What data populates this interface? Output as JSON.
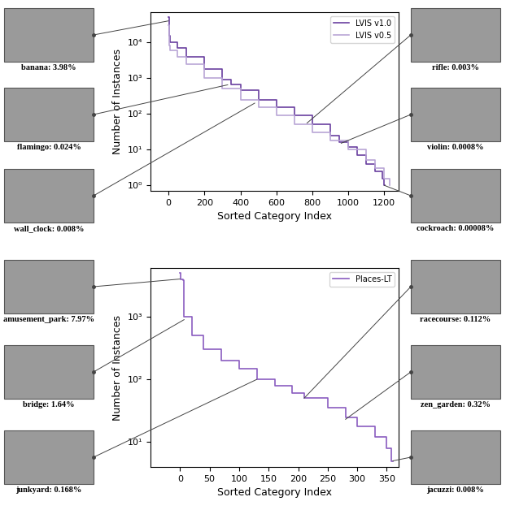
{
  "chart_data": [
    {
      "type": "line",
      "xlabel": "Sorted Category Index",
      "ylabel": "Number of Instances",
      "log": "y",
      "grid": false,
      "legend": "upper right",
      "xlim": [
        -100,
        1280
      ],
      "ylim": [
        0.7,
        70000
      ],
      "xticks": [
        0,
        200,
        400,
        600,
        800,
        1000,
        1200
      ],
      "yticks": [
        {
          "value": 1,
          "label": "10⁰"
        },
        {
          "value": 10,
          "label": "10¹"
        },
        {
          "value": 100,
          "label": "10²"
        },
        {
          "value": 1000,
          "label": "10³"
        },
        {
          "value": 10000,
          "label": "10⁴"
        }
      ],
      "series": [
        {
          "name": "LVIS v1.0",
          "color": "#6a3fa0",
          "x": [
            0,
            3,
            10,
            50,
            100,
            200,
            300,
            350,
            400,
            500,
            600,
            700,
            800,
            900,
            950,
            1000,
            1050,
            1100,
            1150,
            1190,
            1200,
            1203
          ],
          "values": [
            50000,
            15000,
            10000,
            7000,
            4000,
            1800,
            900,
            650,
            450,
            250,
            150,
            90,
            50,
            25,
            16,
            12,
            7,
            4,
            2.5,
            1.5,
            1,
            1
          ]
        },
        {
          "name": "LVIS v0.5",
          "color": "#b9a5d6",
          "x": [
            0,
            3,
            10,
            50,
            100,
            200,
            300,
            400,
            500,
            600,
            700,
            800,
            900,
            1000,
            1100,
            1150,
            1200,
            1230
          ],
          "values": [
            30000,
            8000,
            6000,
            4000,
            2500,
            1000,
            500,
            250,
            150,
            90,
            50,
            30,
            18,
            10,
            5,
            3,
            1.5,
            1
          ]
        }
      ],
      "annotations": [
        {
          "text": "banana: 3.98%",
          "x": 0,
          "y": 40000
        },
        {
          "text": "flamingo: 0.024%",
          "x": 330,
          "y": 650
        },
        {
          "text": "wall_clock: 0.008%",
          "x": 480,
          "y": 200
        },
        {
          "text": "rifle: 0.003%",
          "x": 770,
          "y": 55
        },
        {
          "text": "violin: 0.0008%",
          "x": 960,
          "y": 15
        },
        {
          "text": "cockroach: 0.00008%",
          "x": 1200,
          "y": 1
        }
      ]
    },
    {
      "type": "line",
      "xlabel": "Sorted Category Index",
      "ylabel": "Number of Instances",
      "log": "y",
      "grid": false,
      "legend": "upper right",
      "xlim": [
        -50,
        370
      ],
      "ylim": [
        4,
        6000
      ],
      "xticks": [
        0,
        50,
        100,
        150,
        200,
        250,
        300,
        350
      ],
      "yticks": [
        {
          "value": 10,
          "label": "10¹"
        },
        {
          "value": 100,
          "label": "10²"
        },
        {
          "value": 1000,
          "label": "10³"
        }
      ],
      "series": [
        {
          "name": "Places-LT",
          "color": "#8a5cc0",
          "x": [
            0,
            1,
            5,
            7,
            20,
            40,
            70,
            100,
            130,
            160,
            190,
            210,
            250,
            280,
            300,
            330,
            350,
            358,
            360
          ],
          "values": [
            4980,
            4000,
            3800,
            1000,
            500,
            300,
            200,
            150,
            100,
            80,
            60,
            50,
            35,
            25,
            18,
            12,
            8,
            5,
            5
          ]
        }
      ],
      "annotations": [
        {
          "text": "amusement_park: 7.97%",
          "x": 0,
          "y": 4000
        },
        {
          "text": "bridge: 1.64%",
          "x": 7,
          "y": 900
        },
        {
          "text": "junkyard: 0.168%",
          "x": 130,
          "y": 100
        },
        {
          "text": "racecourse: 0.112%",
          "x": 210,
          "y": 50
        },
        {
          "text": "zen_garden: 0.32%",
          "x": 280,
          "y": 23
        },
        {
          "text": "jacuzzi: 0.008%",
          "x": 360,
          "y": 5
        }
      ]
    }
  ]
}
